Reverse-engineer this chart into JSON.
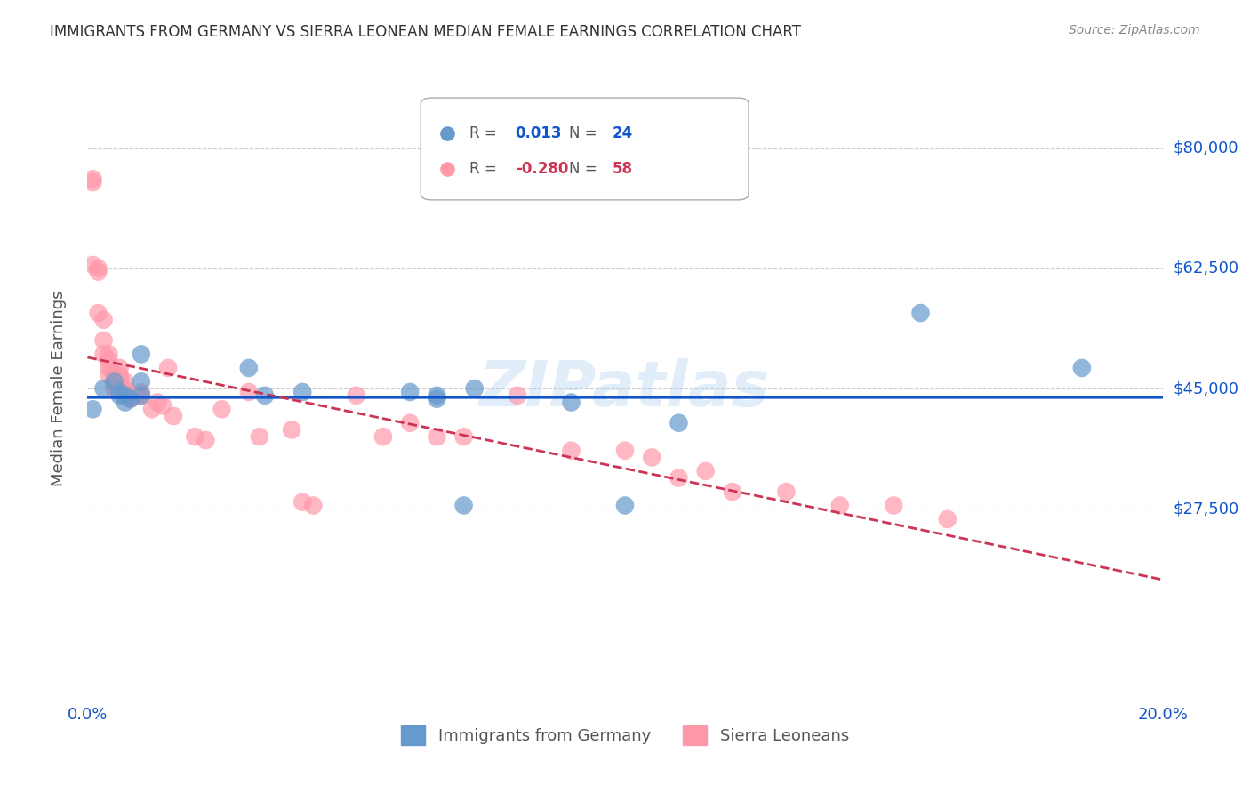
{
  "title": "IMMIGRANTS FROM GERMANY VS SIERRA LEONEAN MEDIAN FEMALE EARNINGS CORRELATION CHART",
  "source": "Source: ZipAtlas.com",
  "ylabel": "Median Female Earnings",
  "xlim": [
    0.0,
    0.2
  ],
  "ylim": [
    0,
    90000
  ],
  "yticks": [
    27500,
    45000,
    62500,
    80000
  ],
  "ytick_labels": [
    "$27,500",
    "$45,000",
    "$62,500",
    "$80,000"
  ],
  "xticks": [
    0.0,
    0.04,
    0.08,
    0.12,
    0.16,
    0.2
  ],
  "xtick_labels": [
    "0.0%",
    "",
    "",
    "",
    "",
    "20.0%"
  ],
  "legend_blue_r": "0.013",
  "legend_blue_n": "24",
  "legend_pink_r": "-0.280",
  "legend_pink_n": "58",
  "legend_label_blue": "Immigrants from Germany",
  "legend_label_pink": "Sierra Leoneans",
  "blue_color": "#6699cc",
  "pink_color": "#ff99aa",
  "trendline_blue_color": "#1155cc",
  "trendline_pink_color": "#cc3355",
  "grid_color": "#cccccc",
  "axis_label_color": "#1155cc",
  "title_color": "#333333",
  "watermark": "ZIPatlas",
  "blue_scatter_x": [
    0.001,
    0.003,
    0.005,
    0.006,
    0.006,
    0.007,
    0.007,
    0.008,
    0.01,
    0.01,
    0.01,
    0.03,
    0.033,
    0.04,
    0.06,
    0.065,
    0.065,
    0.07,
    0.072,
    0.09,
    0.1,
    0.11,
    0.155,
    0.185
  ],
  "blue_scatter_y": [
    42000,
    45000,
    46000,
    44000,
    44500,
    43000,
    44000,
    43500,
    44000,
    50000,
    46000,
    48000,
    44000,
    44500,
    44500,
    44000,
    43500,
    28000,
    45000,
    43000,
    28000,
    40000,
    56000,
    48000
  ],
  "pink_scatter_x": [
    0.001,
    0.001,
    0.001,
    0.002,
    0.002,
    0.002,
    0.003,
    0.003,
    0.003,
    0.004,
    0.004,
    0.004,
    0.004,
    0.005,
    0.005,
    0.005,
    0.005,
    0.005,
    0.006,
    0.006,
    0.006,
    0.007,
    0.007,
    0.007,
    0.008,
    0.008,
    0.009,
    0.01,
    0.01,
    0.012,
    0.013,
    0.014,
    0.015,
    0.016,
    0.02,
    0.022,
    0.025,
    0.03,
    0.032,
    0.038,
    0.04,
    0.042,
    0.05,
    0.055,
    0.06,
    0.065,
    0.07,
    0.08,
    0.09,
    0.1,
    0.105,
    0.11,
    0.115,
    0.12,
    0.13,
    0.14,
    0.15,
    0.16
  ],
  "pink_scatter_y": [
    75000,
    75500,
    63000,
    62500,
    62000,
    56000,
    55000,
    52000,
    50000,
    50000,
    49000,
    48000,
    47000,
    47000,
    46500,
    46000,
    45500,
    45000,
    48000,
    47000,
    46500,
    46000,
    45000,
    44500,
    44000,
    43500,
    44000,
    44500,
    44000,
    42000,
    43000,
    42500,
    48000,
    41000,
    38000,
    37500,
    42000,
    44500,
    38000,
    39000,
    28500,
    28000,
    44000,
    38000,
    40000,
    38000,
    38000,
    44000,
    36000,
    36000,
    35000,
    32000,
    33000,
    30000,
    30000,
    28000,
    28000,
    26000
  ]
}
